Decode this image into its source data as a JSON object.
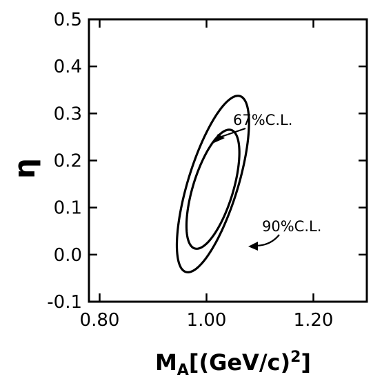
{
  "chart_data": {
    "type": "contour",
    "xlabel": "M_A[(GeV/c)^2]",
    "xlabel_parts": {
      "main": "M",
      "sub": "A",
      "rest": "[(GeV/c)",
      "sup": "2",
      "close": "]"
    },
    "ylabel": "η",
    "xlim": [
      0.78,
      1.3
    ],
    "ylim": [
      -0.1,
      0.5
    ],
    "x_ticks": [
      0.8,
      1.0,
      1.2
    ],
    "x_tick_labels": [
      "0.80",
      "1.00",
      "1.20"
    ],
    "y_ticks": [
      -0.1,
      0.0,
      0.1,
      0.2,
      0.3,
      0.4,
      0.5
    ],
    "y_tick_labels": [
      "-0.1",
      "0.0",
      "0.1",
      "0.2",
      "0.3",
      "0.4",
      "0.5"
    ],
    "grid": false,
    "contours": [
      {
        "name": "67% C.L.",
        "label": "67%C.L.",
        "center": [
          1.012,
          0.139
        ],
        "x_extent": [
          0.963,
          1.062
        ],
        "y_extent": [
          0.012,
          0.265
        ]
      },
      {
        "name": "90% C.L.",
        "label": "90%C.L.",
        "center": [
          1.012,
          0.15
        ],
        "x_extent": [
          0.945,
          1.08
        ],
        "y_extent": [
          -0.037,
          0.338
        ]
      }
    ]
  }
}
